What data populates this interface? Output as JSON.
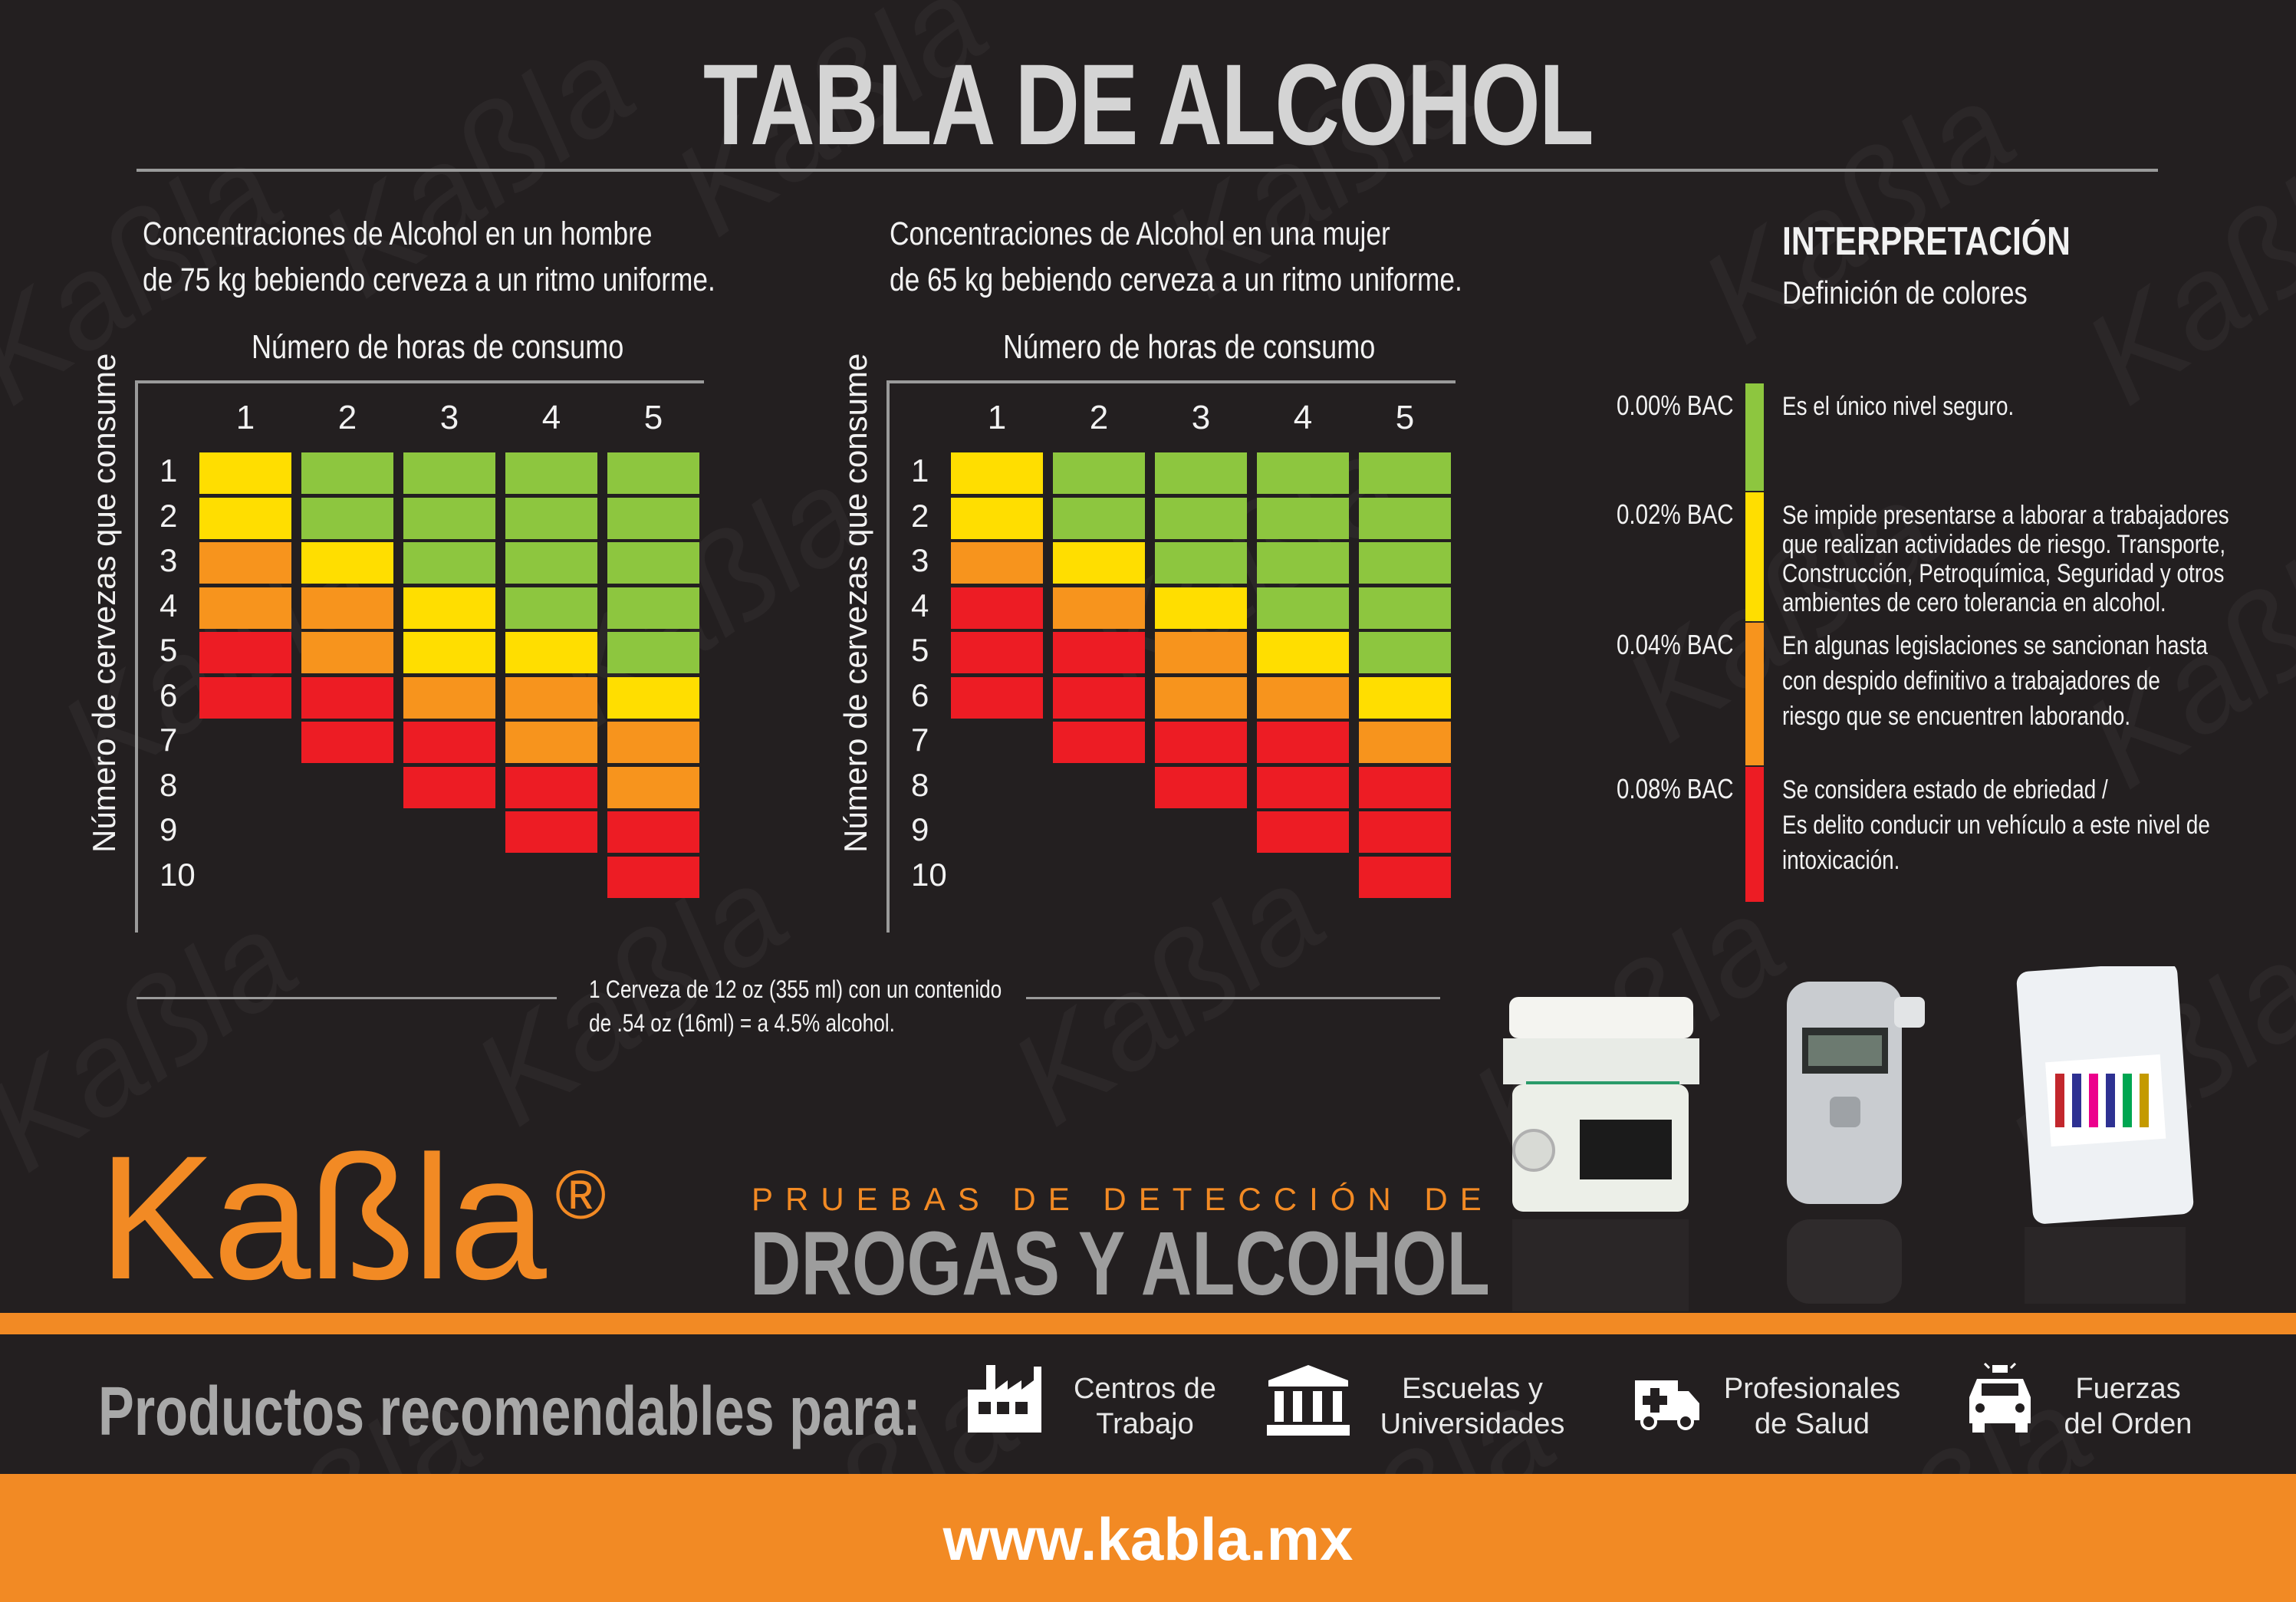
{
  "title": "TABLA DE ALCOHOL",
  "men": {
    "caption_line1": "Concentraciones de Alcohol en un hombre",
    "caption_line2": "de 75 kg bebiendo cerveza a un ritmo uniforme.",
    "x_label": "Número de horas de consumo",
    "y_label": "Número de cervezas que consume",
    "hours": [
      "1",
      "2",
      "3",
      "4",
      "5"
    ],
    "beers": [
      "1",
      "2",
      "3",
      "4",
      "5",
      "6",
      "7",
      "8",
      "9",
      "10"
    ],
    "grid": [
      [
        "Y",
        "G",
        "G",
        "G",
        "G"
      ],
      [
        "Y",
        "G",
        "G",
        "G",
        "G"
      ],
      [
        "O",
        "Y",
        "G",
        "G",
        "G"
      ],
      [
        "O",
        "O",
        "Y",
        "G",
        "G"
      ],
      [
        "R",
        "O",
        "Y",
        "Y",
        "G"
      ],
      [
        "R",
        "R",
        "O",
        "O",
        "Y"
      ],
      [
        null,
        "R",
        "R",
        "O",
        "O"
      ],
      [
        null,
        null,
        "R",
        "R",
        "O"
      ],
      [
        null,
        null,
        null,
        "R",
        "R"
      ],
      [
        null,
        null,
        null,
        null,
        "R"
      ]
    ]
  },
  "women": {
    "caption_line1": "Concentraciones de Alcohol en una mujer",
    "caption_line2": "de 65 kg bebiendo cerveza a un ritmo uniforme.",
    "x_label": "Número de horas de consumo",
    "y_label": "Número de cervezas que consume",
    "hours": [
      "1",
      "2",
      "3",
      "4",
      "5"
    ],
    "beers": [
      "1",
      "2",
      "3",
      "4",
      "5",
      "6",
      "7",
      "8",
      "9",
      "10"
    ],
    "grid": [
      [
        "Y",
        "G",
        "G",
        "G",
        "G"
      ],
      [
        "Y",
        "G",
        "G",
        "G",
        "G"
      ],
      [
        "O",
        "Y",
        "G",
        "G",
        "G"
      ],
      [
        "R",
        "O",
        "Y",
        "G",
        "G"
      ],
      [
        "R",
        "R",
        "O",
        "Y",
        "G"
      ],
      [
        "R",
        "R",
        "O",
        "O",
        "Y"
      ],
      [
        null,
        "R",
        "R",
        "R",
        "O"
      ],
      [
        null,
        null,
        "R",
        "R",
        "R"
      ],
      [
        null,
        null,
        null,
        "R",
        "R"
      ],
      [
        null,
        null,
        null,
        null,
        "R"
      ]
    ]
  },
  "colors": {
    "G": "#8dc63f",
    "Y": "#ffde00",
    "O": "#f7941d",
    "R": "#ed1c24",
    "brand_orange": "#f28a24",
    "background": "#231f20"
  },
  "interpretation": {
    "title": "INTERPRETACIÓN",
    "subtitle": "Definición de colores",
    "levels": [
      {
        "bac": "0.00% BAC",
        "color": "G",
        "lines": [
          "Es el único nivel seguro."
        ]
      },
      {
        "bac": "0.02% BAC",
        "color": "Y",
        "lines": [
          "Se impide presentarse a laborar a trabajadores",
          "que realizan actividades de riesgo. Transporte,",
          "Construcción, Petroquímica, Seguridad y otros",
          "ambientes de cero tolerancia en alcohol."
        ]
      },
      {
        "bac": "0.04% BAC",
        "color": "O",
        "lines": [
          "En algunas legislaciones se sancionan hasta",
          "con despido definitivo a trabajadores de",
          "riesgo que se encuentren laborando."
        ]
      },
      {
        "bac": "0.08% BAC",
        "color": "R",
        "lines": [
          "Se considera estado de ebriedad /",
          "Es delito conducir un vehículo a este nivel de",
          "intoxicación."
        ]
      }
    ]
  },
  "note": {
    "line1": "1 Cerveza de 12 oz (355 ml) con un contenido",
    "line2": "de  .54 oz (16ml) = a 4.5% alcohol."
  },
  "brand": {
    "name": "Kaßla",
    "registered": "®",
    "tagline_small": "PRUEBAS DE DETECCIÓN DE",
    "tagline_big": "DROGAS Y ALCOHOL",
    "watermark": "Kaßla"
  },
  "products": {
    "label": "Productos recomendables para:",
    "items": [
      {
        "icon": "factory-icon",
        "line1": "Centros de",
        "line2": "Trabajo"
      },
      {
        "icon": "school-icon",
        "line1": "Escuelas y",
        "line2": "Universidades"
      },
      {
        "icon": "ambulance-icon",
        "line1": "Profesionales",
        "line2": "de Salud"
      },
      {
        "icon": "police-car-icon",
        "line1": "Fuerzas",
        "line2": "del Orden"
      }
    ]
  },
  "footer": {
    "url": "www.kabla.mx"
  }
}
